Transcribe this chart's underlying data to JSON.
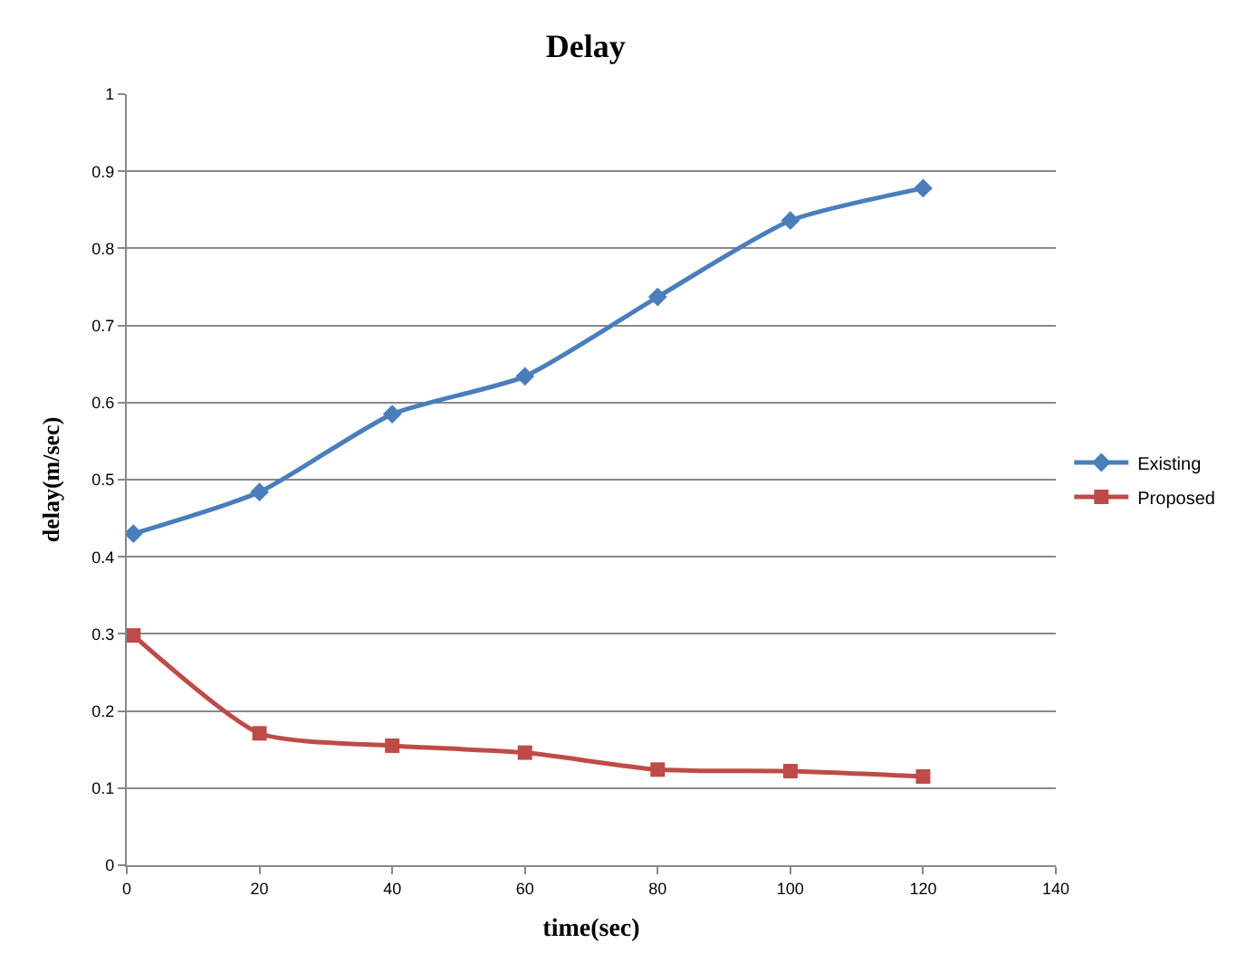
{
  "chart_data": {
    "type": "line",
    "title": "Delay",
    "xlabel": "time(sec)",
    "ylabel": "delay(m/sec)",
    "x": [
      1,
      20,
      40,
      60,
      80,
      100,
      120
    ],
    "series": [
      {
        "name": "Existing",
        "color": "#4a7ebb",
        "marker": "diamond",
        "values": [
          0.43,
          0.484,
          0.585,
          0.634,
          0.737,
          0.836,
          0.878
        ]
      },
      {
        "name": "Proposed",
        "color": "#be4b48",
        "marker": "square",
        "values": [
          0.298,
          0.171,
          0.155,
          0.146,
          0.124,
          0.122,
          0.115
        ]
      }
    ],
    "xlim": [
      0,
      140
    ],
    "xticks": [
      0,
      20,
      40,
      60,
      80,
      100,
      120,
      140
    ],
    "ylim": [
      0,
      1
    ],
    "yticks": [
      0,
      0.1,
      0.2,
      0.3,
      0.4,
      0.5,
      0.6,
      0.7,
      0.8,
      0.9,
      1
    ],
    "grid": "y",
    "legend": "right",
    "line_style": "solid"
  }
}
